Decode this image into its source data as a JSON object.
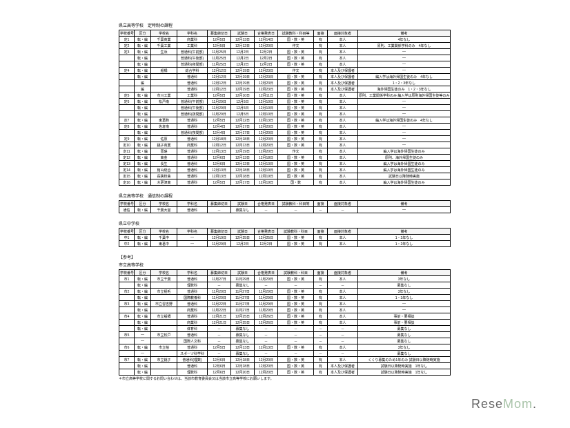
{
  "logo": {
    "part1": "Rese",
    "part2": "Mom",
    "part3": "."
  },
  "colWidths": [
    "22px",
    "24px",
    "38px",
    "44px",
    "34px",
    "34px",
    "34px",
    "52px",
    "20px",
    "44px",
    "134px"
  ],
  "sections": [
    {
      "title": "県立高等学校　定時制の課程",
      "headers": [
        "学校番号",
        "区分",
        "学校名",
        "学科名",
        "募集締切日",
        "試験日",
        "合格発表日",
        "試験教科・科目等",
        "面接",
        "面接対象者",
        "備考"
      ],
      "rows": [
        [
          "定1",
          "転・編",
          "千葉商業",
          "商業科",
          "12月5日",
          "12月13日",
          "12月14日",
          "国・数・英",
          "有",
          "本人",
          "4年なし"
        ],
        [
          "定2",
          "転・編",
          "千葉工業",
          "工業科",
          "12月5日",
          "12月12日",
          "12月20日",
          "作文",
          "有",
          "本人",
          "原則、工業関係学科のみ　4年なし"
        ],
        [
          "定3",
          "転・編",
          "生浜",
          "普通科(午前部)",
          "11月25日",
          "12月2日",
          "12月2日",
          "国・数・英",
          "有",
          "本人",
          "―"
        ],
        [
          "",
          "転・編",
          "",
          "普通科(午後部)",
          "11月25日",
          "12月2日",
          "12月2日",
          "国・数・英",
          "有",
          "本人",
          "―"
        ],
        [
          "",
          "転・編",
          "",
          "普通科(夜間部)",
          "11月25日",
          "12月2日",
          "12月2日",
          "国・数・英",
          "有",
          "本人",
          "―"
        ],
        [
          "定4",
          "転・編",
          "船橋",
          "総合学科",
          "12月12日",
          "12月19日",
          "12月23日",
          "作文",
          "有",
          "本人及び保護者",
          "―"
        ],
        [
          "",
          "転・編",
          "",
          "普通科",
          "12月12日",
          "12月19日",
          "12月23日",
          "国・数・英",
          "有",
          "本人及び保護者",
          "編入学は海外帰国生徒のみ　4年なし"
        ],
        [
          "",
          "編",
          "",
          "普通科",
          "12月12日",
          "12月19日",
          "12月23日",
          "国・数・英",
          "有",
          "本人及び保護者",
          "1・2・3年なし"
        ],
        [
          "",
          "編",
          "",
          "普通科",
          "12月12日",
          "12月19日",
          "12月23日",
          "国・数・英",
          "有",
          "本人及び保護者",
          "海外帰国生徒のみ　1・2・3年なし"
        ],
        [
          "定5",
          "転・編",
          "市川工業",
          "工業科",
          "12月5日",
          "12月10日",
          "12月11日",
          "国・数・英",
          "有",
          "本人",
          "原則、工業関係学科のみ\n編入学は原則海外帰国生徒等のみ　4年なし"
        ],
        [
          "定6",
          "転・編",
          "松戸南",
          "普通科(午前部)",
          "11月29日",
          "12月5日",
          "12月10日",
          "国・数・英",
          "有",
          "本人",
          "―"
        ],
        [
          "",
          "転・編",
          "",
          "普通科(午後部)",
          "11月29日",
          "12月5日",
          "12月10日",
          "国・数・英",
          "有",
          "本人",
          "―"
        ],
        [
          "",
          "転・編",
          "",
          "普通科(夜間部)",
          "11月29日",
          "12月5日",
          "12月10日",
          "国・数・英",
          "有",
          "本人",
          "―"
        ],
        [
          "定7",
          "転・編",
          "東葛飾",
          "普通科",
          "12月5日",
          "12月12日",
          "12月13日",
          "国・数・英",
          "有",
          "本人",
          "編入学は海外帰国生徒のみ　4年なし"
        ],
        [
          "定8",
          "転・編",
          "佐倉南",
          "普通科",
          "12月4日",
          "12月17日",
          "12月20日",
          "国・数・英",
          "有",
          "本人",
          "―"
        ],
        [
          "",
          "転・編",
          "",
          "普通科(夜間部)",
          "12月4日",
          "12月17日",
          "12月20日",
          "国・数・英",
          "有",
          "本人",
          "―"
        ],
        [
          "定9",
          "転・編",
          "佐原",
          "普通科",
          "12月18日",
          "12月18日",
          "12月20日",
          "国・数・英",
          "有",
          "本人",
          "―"
        ],
        [
          "定10",
          "転・編",
          "銚子商業",
          "商業科",
          "12月12日",
          "12月13日",
          "12月20日",
          "国・数・英",
          "有",
          "本人",
          "―"
        ],
        [
          "定11",
          "転・編",
          "匝瑳",
          "普通科",
          "12月13日",
          "12月19日",
          "12月20日",
          "作文",
          "有",
          "本人",
          "編入学は海外帰国生徒のみ"
        ],
        [
          "定12",
          "転・編",
          "東金",
          "普通科",
          "12月6日",
          "12月13日",
          "12月18日",
          "国・数・英",
          "有",
          "本人",
          "原則、海外帰国生徒のみ"
        ],
        [
          "定13",
          "転・編",
          "長生",
          "普通科",
          "12月6日",
          "12月12日",
          "12月13日",
          "国・数・英",
          "有",
          "本人",
          "編入学は海外帰国生徒のみ"
        ],
        [
          "定14",
          "転・編",
          "館山総合",
          "普通科",
          "12月13日",
          "12月18日",
          "12月19日",
          "国・数・英",
          "有",
          "本人",
          "編入学は海外帰国生徒のみ"
        ],
        [
          "定15",
          "転・編",
          "長狭校舎",
          "普通科",
          "12月13日",
          "12月18日",
          "12月19日",
          "国・数・英",
          "有",
          "本人",
          "試験日以降随時実施"
        ],
        [
          "定16",
          "転・編",
          "木更津東",
          "普通科",
          "12月5日",
          "12月17日",
          "12月19日",
          "国・数",
          "有",
          "本人",
          "編入学は海外帰国生徒のみ"
        ]
      ]
    },
    {
      "title": "県立高等学校　通信制の課程",
      "headers": [
        "学校番号",
        "区分",
        "学校名",
        "学科名",
        "募集締切日",
        "試験日",
        "合格発表日",
        "試験教科・科目等",
        "面接",
        "面接対象者",
        "備考"
      ],
      "rows": [
        [
          "通信",
          "転・編",
          "千葉大宮",
          "普通科",
          "－",
          "募集なし",
          "－",
          "－",
          "－",
          "－",
          "―"
        ]
      ]
    },
    {
      "title": "県立中学校",
      "headers": [
        "学校番号",
        "区分",
        "学校名",
        "学科名",
        "募集締切日",
        "試験日",
        "合格発表日",
        "試験教科・科目",
        "面接",
        "面接対象者",
        "備考"
      ],
      "rows": [
        [
          "中1",
          "転・編",
          "千葉中",
          "―",
          "12月19日",
          "12月25日",
          "12月25日",
          "国・数・英",
          "有",
          "本人",
          "1・2年なし"
        ],
        [
          "中2",
          "転・編",
          "東葛中",
          "―",
          "11月29日",
          "12月2日",
          "12月2日",
          "国・数・英",
          "有",
          "本人",
          "1・2年なし"
        ]
      ]
    },
    {
      "title": "【参考】",
      "subtitle": "市立高等学校",
      "headers": [
        "学校番号",
        "区分",
        "学校名",
        "学科名",
        "募集締切日",
        "試験日",
        "合格発表日",
        "試験教科・科目",
        "面接",
        "面接対象者",
        "備考"
      ],
      "rows": [
        [
          "市1",
          "転・編",
          "市立千葉",
          "普通科",
          "11月27日",
          "11月29日",
          "11月29日",
          "国・数・英",
          "有",
          "本人",
          "3年なし"
        ],
        [
          "",
          "転・編",
          "",
          "理数科",
          "－",
          "募集なし",
          "－",
          "－",
          "－",
          "－",
          "募集なし"
        ],
        [
          "市2",
          "転・編",
          "市立稲毛",
          "普通科",
          "11月20日",
          "11月27日",
          "11月29日",
          "国・数・英",
          "有",
          "本人",
          "3年なし"
        ],
        [
          "",
          "転・編",
          "",
          "国際教養科",
          "11月20日",
          "11月27日",
          "11月29日",
          "国・数・英",
          "有",
          "本人",
          "1・3年なし"
        ],
        [
          "市3",
          "転・編",
          "市立習志野",
          "普通科",
          "11月22日",
          "11月27日",
          "11月29日",
          "国・数・英",
          "有",
          "本人",
          "―"
        ],
        [
          "",
          "転・編",
          "",
          "商業科",
          "11月22日",
          "11月27日",
          "11月29日",
          "国・数・英",
          "有",
          "本人",
          "―"
        ],
        [
          "市4",
          "転・編",
          "市立船橋",
          "普通科",
          "12月21日",
          "12月25日",
          "12月26日",
          "国・数・英",
          "有",
          "本人",
          "事前・要相談"
        ],
        [
          "",
          "転・編",
          "",
          "商業科",
          "12月21日",
          "12月25日",
          "12月26日",
          "国・数・英",
          "有",
          "本人",
          "事前・要相談"
        ],
        [
          "",
          "転・編",
          "",
          "体育科",
          "－",
          "募集なし",
          "－",
          "－",
          "－",
          "－",
          "募集なし"
        ],
        [
          "市5",
          "―",
          "市立松戸",
          "普通科",
          "－",
          "募集なし",
          "－",
          "－",
          "－",
          "－",
          "募集なし"
        ],
        [
          "",
          "―",
          "",
          "国際人文科",
          "－",
          "募集なし",
          "－",
          "－",
          "－",
          "－",
          "募集なし"
        ],
        [
          "市6",
          "転・編",
          "市立柏",
          "普通科",
          "12月5日",
          "12月13日",
          "12月13日",
          "国・数・英",
          "有",
          "本人",
          "3年なし"
        ],
        [
          "",
          "―",
          "",
          "スポーツ科学科",
          "－",
          "募集なし",
          "－",
          "－",
          "－",
          "－",
          "募集なし"
        ],
        [
          "市7",
          "転・編",
          "市立銚子",
          "普通科(理数)",
          "12月6日",
          "12月18日",
          "12月20日",
          "国・数・英",
          "有",
          "本人",
          "くくり募集のため1年のみ\n試験日以降随時実施"
        ],
        [
          "",
          "転・編",
          "",
          "普通科",
          "12月6日",
          "12月18日",
          "12月20日",
          "国・数・英",
          "有",
          "本人及び保護者",
          "試験日以降随時実施　1年なし"
        ],
        [
          "",
          "転・編",
          "",
          "理数科",
          "12月6日",
          "12月20日",
          "12月20日",
          "国・数・英",
          "有",
          "本人及び保護者",
          "試験日以降随時実施　1年なし"
        ]
      ],
      "footnote": "＊市立高等学校に関するお問い合わせは、当該市教育委員会又は当該市立高等学校にお願いします。"
    }
  ]
}
